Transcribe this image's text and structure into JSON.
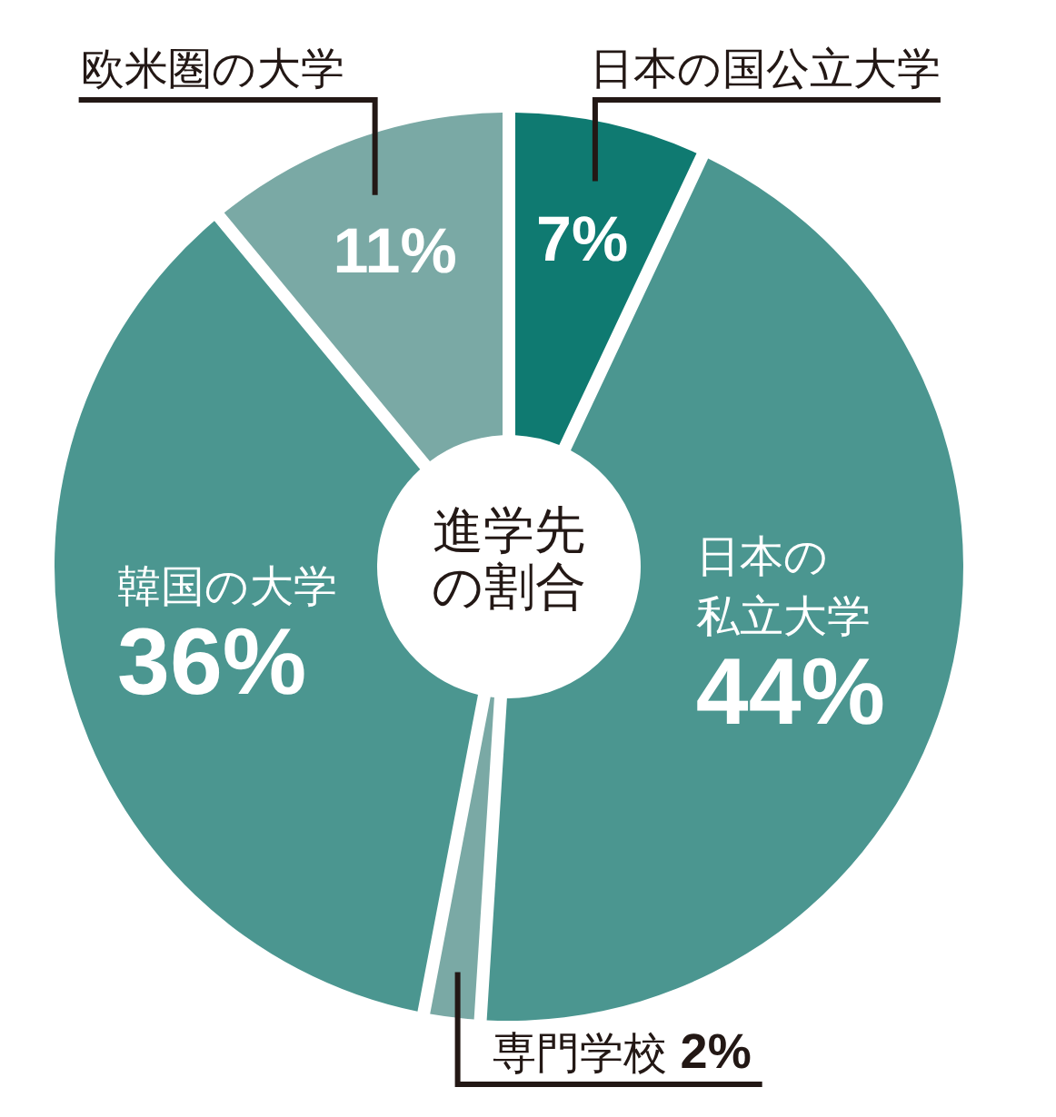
{
  "chart_data": {
    "type": "donut",
    "title": "進学先の割合",
    "categories": [
      "日本の国公立大学",
      "日本の私立大学",
      "専門学校",
      "韓国の大学",
      "欧米圏の大学"
    ],
    "values": [
      7,
      44,
      2,
      36,
      11
    ],
    "colors": [
      "#0f7a71",
      "#4b9690",
      "#7aa9a5",
      "#4b9690",
      "#7aa9a5"
    ],
    "value_labels": [
      "7%",
      "44%",
      "2%",
      "36%",
      "11%"
    ]
  }
}
